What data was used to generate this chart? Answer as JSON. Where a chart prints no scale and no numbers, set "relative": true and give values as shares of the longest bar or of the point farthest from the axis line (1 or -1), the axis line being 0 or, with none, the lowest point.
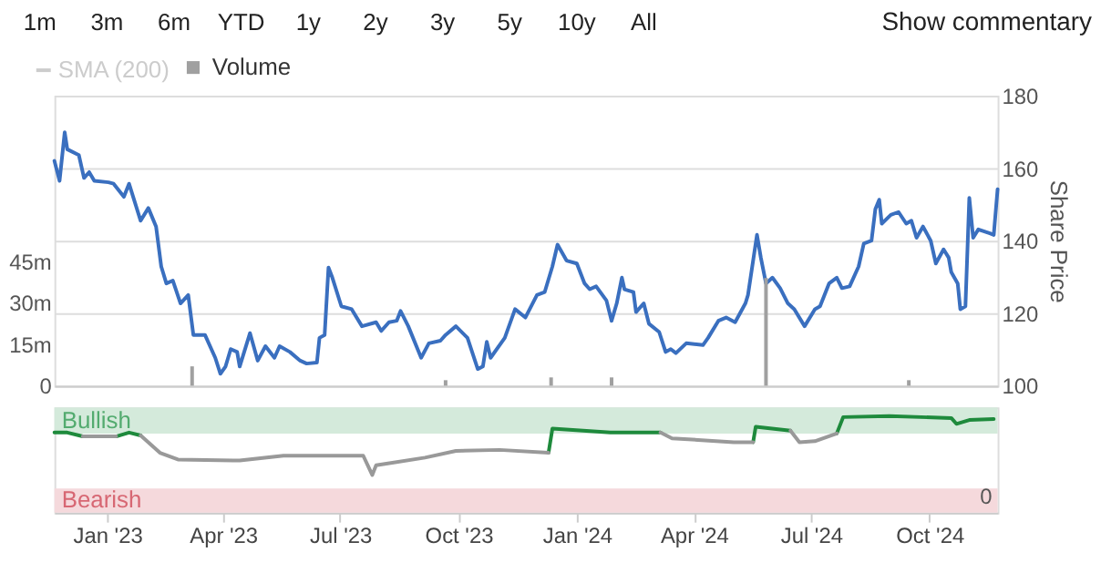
{
  "chart_data": [
    {
      "type": "line",
      "ylabel": "Share Price",
      "xlim": [
        "2022-11-21",
        "2024-11-23"
      ],
      "ylim": [
        100,
        180
      ],
      "yticks": [
        100,
        120,
        140,
        160,
        180
      ],
      "y2lim": [
        0,
        105
      ],
      "y2ticks": [
        0,
        {
          "value": 15,
          "label": "15m"
        },
        {
          "value": 30,
          "label": "30m"
        },
        {
          "value": 45,
          "label": "45m"
        }
      ],
      "tick_labels": "y",
      "grid": "y",
      "legend": "top left",
      "annotations": [
        "1m",
        "3m",
        "6m",
        "YTD",
        "1y",
        "2y",
        "3y",
        "5y",
        "10y",
        "All",
        "Show commentary",
        "SMA (200)"
      ],
      "series": [
        {
          "type": "line",
          "color": "#3a6fbf",
          "x": [
            "2022-11-21",
            "2022-11-25",
            "2022-11-29",
            "2022-12-01",
            "2022-12-10",
            "2022-12-14",
            "2022-12-18",
            "2022-12-22",
            "2023-01-02",
            "2023-01-06",
            "2023-01-14",
            "2023-01-18",
            "2023-01-27",
            "2023-02-02",
            "2023-02-08",
            "2023-02-12",
            "2023-02-16",
            "2023-02-21",
            "2023-02-27",
            "2023-03-05",
            "2023-03-09",
            "2023-03-18",
            "2023-03-26",
            "2023-03-30",
            "2023-04-03",
            "2023-04-07",
            "2023-04-12",
            "2023-04-14",
            "2023-04-22",
            "2023-04-28",
            "2023-05-04",
            "2023-05-11",
            "2023-05-15",
            "2023-05-23",
            "2023-05-31",
            "2023-06-05",
            "2023-06-13",
            "2023-06-15",
            "2023-06-19",
            "2023-06-22",
            "2023-06-25",
            "2023-07-02",
            "2023-07-10",
            "2023-07-18",
            "2023-07-29",
            "2023-08-02",
            "2023-08-08",
            "2023-08-14",
            "2023-08-17",
            "2023-08-23",
            "2023-09-02",
            "2023-09-08",
            "2023-09-17",
            "2023-09-21",
            "2023-09-29",
            "2023-10-08",
            "2023-10-16",
            "2023-10-20",
            "2023-10-23",
            "2023-10-26",
            "2023-11-06",
            "2023-11-14",
            "2023-11-22",
            "2023-12-01",
            "2023-12-07",
            "2023-12-13",
            "2023-12-17",
            "2023-12-24",
            "2024-01-01",
            "2024-01-07",
            "2024-01-11",
            "2024-01-16",
            "2024-01-24",
            "2024-01-28",
            "2024-02-01",
            "2024-02-05",
            "2024-02-07",
            "2024-02-14",
            "2024-02-16",
            "2024-02-22",
            "2024-02-26",
            "2024-03-05",
            "2024-03-10",
            "2024-03-14",
            "2024-03-18",
            "2024-03-26",
            "2024-04-08",
            "2024-04-12",
            "2024-04-20",
            "2024-04-26",
            "2024-05-03",
            "2024-05-11",
            "2024-05-13",
            "2024-05-20",
            "2024-05-23",
            "2024-05-27",
            "2024-06-01",
            "2024-06-07",
            "2024-06-13",
            "2024-06-18",
            "2024-06-26",
            "2024-07-04",
            "2024-07-08",
            "2024-07-15",
            "2024-07-21",
            "2024-07-25",
            "2024-07-31",
            "2024-08-07",
            "2024-08-11",
            "2024-08-17",
            "2024-08-20",
            "2024-08-23",
            "2024-08-25",
            "2024-09-01",
            "2024-09-07",
            "2024-09-13",
            "2024-09-17",
            "2024-09-21",
            "2024-09-26",
            "2024-10-02",
            "2024-10-06",
            "2024-10-12",
            "2024-10-16",
            "2024-10-18",
            "2024-10-23",
            "2024-10-25",
            "2024-10-29",
            "2024-11-01",
            "2024-11-04",
            "2024-11-08",
            "2024-11-17",
            "2024-11-20",
            "2024-11-23"
          ],
          "values": [
            162.0,
            156.5,
            169.9,
            165.2,
            163.6,
            157.3,
            158.9,
            156.5,
            156.1,
            155.7,
            152.1,
            155.7,
            145.5,
            149.0,
            143.9,
            132.9,
            128.2,
            129.0,
            122.7,
            125.0,
            114.0,
            114.0,
            107.7,
            103.3,
            105.3,
            110.1,
            109.3,
            105.3,
            114.5,
            106.9,
            110.9,
            107.7,
            110.9,
            109.3,
            106.9,
            106.1,
            106.4,
            113.2,
            114.0,
            132.6,
            129.8,
            121.9,
            121.1,
            116.4,
            117.5,
            115.1,
            117.5,
            117.9,
            120.6,
            116.4,
            107.7,
            111.7,
            112.4,
            114.0,
            116.4,
            113.2,
            104.6,
            105.3,
            112.1,
            107.7,
            113.2,
            121.1,
            118.8,
            125.0,
            125.8,
            132.9,
            138.9,
            134.5,
            133.7,
            128.2,
            126.6,
            127.4,
            123.5,
            117.9,
            122.7,
            129.8,
            126.6,
            125.8,
            120.3,
            122.7,
            117.1,
            114.8,
            109.3,
            110.1,
            109.0,
            111.7,
            111.2,
            113.2,
            117.9,
            118.8,
            117.5,
            122.7,
            125.0,
            141.6,
            135.3,
            128.2,
            129.8,
            126.9,
            122.7,
            121.1,
            116.4,
            121.1,
            121.9,
            128.2,
            129.8,
            126.9,
            127.4,
            132.9,
            139.2,
            140.0,
            148.7,
            151.3,
            144.7,
            147.1,
            147.9,
            144.7,
            145.5,
            140.8,
            143.9,
            140.0,
            133.7,
            137.6,
            135.3,
            131.3,
            128.2,
            121.1,
            121.9,
            151.8,
            140.8,
            143.1,
            142.0,
            141.6,
            154.2
          ]
        },
        {
          "type": "bar",
          "name": "Volume",
          "axis": "y2",
          "color": "#a0a0a0",
          "x": [
            "2023-03-08",
            "2023-09-21",
            "2023-12-12",
            "2024-01-28",
            "2024-05-27",
            "2024-09-15"
          ],
          "values": [
            7,
            2,
            3,
            3,
            39,
            2
          ]
        }
      ]
    },
    {
      "type": "line",
      "xlim": [
        "2022-11-21",
        "2024-11-23"
      ],
      "xticks": [
        {
          "value": "2023-01-01",
          "label": "Jan '23"
        },
        {
          "value": "2023-04-01",
          "label": "Apr '23"
        },
        {
          "value": "2023-07-01",
          "label": "Jul '23"
        },
        {
          "value": "2023-10-01",
          "label": "Oct '23"
        },
        {
          "value": "2024-01-01",
          "label": "Jan '24"
        },
        {
          "value": "2024-04-01",
          "label": "Apr '24"
        },
        {
          "value": "2024-07-01",
          "label": "Jul '24"
        },
        {
          "value": "2024-10-01",
          "label": "Oct '24"
        }
      ],
      "relative": true,
      "annotations": [
        "0"
      ],
      "bands": [
        {
          "axis": "y",
          "from": 0.82,
          "to": 1.09,
          "label": "Bullish",
          "color": "#d4eadb"
        },
        {
          "axis": "y",
          "from": 0,
          "to": 0.25,
          "label": "Bearish",
          "color": "#f5d9dc"
        }
      ],
      "x": [
        "2022-11-21",
        "2022-12-01",
        "2022-12-13",
        "2023-01-08",
        "2023-01-18",
        "2023-01-27",
        "2023-02-11",
        "2023-02-25",
        "2023-04-14",
        "2023-05-18",
        "2023-07-19",
        "2023-07-26",
        "2023-07-29",
        "2023-09-05",
        "2023-09-29",
        "2023-11-02",
        "2023-12-10",
        "2023-12-13",
        "2024-01-27",
        "2024-03-06",
        "2024-03-15",
        "2024-05-02",
        "2024-05-17",
        "2024-05-19",
        "2024-06-15",
        "2024-06-22",
        "2024-07-04",
        "2024-07-21",
        "2024-07-26",
        "2024-08-31",
        "2024-10-18",
        "2024-10-22",
        "2024-11-01",
        "2024-11-20"
      ],
      "series": [
        {
          "color": "#1e8a3c",
          "values": [
            0.83,
            0.83,
            0.79,
            0.79,
            0.83,
            0.8,
            null,
            null,
            null,
            null,
            null,
            null,
            null,
            null,
            null,
            null,
            0.62,
            0.87,
            0.83,
            0.83,
            null,
            null,
            0.73,
            0.89,
            0.85,
            null,
            null,
            0.82,
            0.99,
            1,
            0.98,
            0.92,
            0.96,
            0.97
          ]
        },
        {
          "color": "#999999",
          "values": [
            null,
            null,
            0.79,
            0.79,
            null,
            0.8,
            0.62,
            0.55,
            0.54,
            0.59,
            0.59,
            0.39,
            0.49,
            0.57,
            0.64,
            0.65,
            0.62,
            null,
            null,
            0.83,
            0.77,
            0.73,
            0.73,
            null,
            0.85,
            0.73,
            0.74,
            0.82,
            null,
            null,
            null,
            null,
            null,
            null
          ]
        }
      ]
    }
  ]
}
